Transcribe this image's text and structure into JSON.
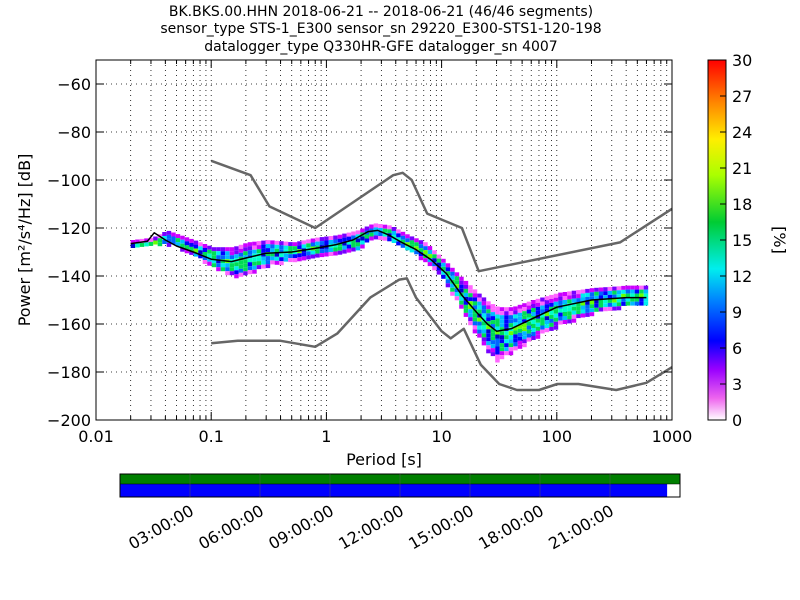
{
  "title_lines": [
    "BK.BKS.00.HHN   2018-06-21 -- 2018-06-21  (46/46 segments)",
    "sensor_type STS-1_E300 sensor_sn 29220_E300-STS1-120-198",
    "datalogger_type Q330HR-GFE datalogger_sn 4007"
  ],
  "chart_data": {
    "type": "heatmap",
    "title": "BK.BKS.00.HHN   2018-06-21 -- 2018-06-21  (46/46 segments)",
    "xlabel": "Period [s]",
    "ylabel": "Power [m^2/s^4/Hz] [dB]",
    "x_scale": "log",
    "xlim": [
      0.01,
      1000
    ],
    "ylim": [
      -200,
      -50
    ],
    "x_ticks": [
      0.01,
      0.1,
      1,
      10,
      100,
      1000
    ],
    "x_tick_labels": [
      "0.01",
      "0.1",
      "1",
      "10",
      "100",
      "1000"
    ],
    "y_ticks": [
      -200,
      -180,
      -160,
      -140,
      -120,
      -100,
      -80,
      -60
    ],
    "y_tick_labels": [
      "−200",
      "−180",
      "−160",
      "−140",
      "−120",
      "−100",
      "−80",
      "−60"
    ],
    "grid": true,
    "colorbar": {
      "label": "[%]",
      "range": [
        0,
        30
      ],
      "ticks": [
        0,
        3,
        6,
        9,
        12,
        15,
        18,
        21,
        24,
        27,
        30
      ],
      "tick_labels": [
        "0",
        "3",
        "6",
        "9",
        "12",
        "15",
        "18",
        "21",
        "24",
        "27",
        "30"
      ]
    },
    "noise_models": [
      {
        "name": "NHNM",
        "color": "#666666",
        "points": [
          [
            0.1,
            -92
          ],
          [
            0.22,
            -98
          ],
          [
            0.32,
            -111
          ],
          [
            0.8,
            -120
          ],
          [
            3.8,
            -98
          ],
          [
            4.6,
            -97
          ],
          [
            5.5,
            -100
          ],
          [
            7.5,
            -114
          ],
          [
            15,
            -120
          ],
          [
            21,
            -138
          ],
          [
            354,
            -126
          ],
          [
            1000,
            -112
          ]
        ]
      },
      {
        "name": "NLNM",
        "color": "#666666",
        "points": [
          [
            0.1,
            -168
          ],
          [
            0.17,
            -167
          ],
          [
            0.4,
            -167
          ],
          [
            0.8,
            -169.5
          ],
          [
            1.24,
            -164
          ],
          [
            2.4,
            -149
          ],
          [
            4.3,
            -141.5
          ],
          [
            5,
            -141
          ],
          [
            6,
            -149
          ],
          [
            10,
            -163
          ],
          [
            12,
            -166
          ],
          [
            15.6,
            -162
          ],
          [
            21.9,
            -177
          ],
          [
            31.6,
            -185
          ],
          [
            45,
            -187.5
          ],
          [
            70,
            -187.5
          ],
          [
            101,
            -185
          ],
          [
            154,
            -185
          ],
          [
            328,
            -187.5
          ],
          [
            600,
            -184.5
          ],
          [
            1000,
            -178
          ]
        ]
      }
    ],
    "mode_curve": {
      "name": "mode",
      "color": "#000000",
      "points": [
        [
          0.02,
          -126.5
        ],
        [
          0.028,
          -125.5
        ],
        [
          0.032,
          -122
        ],
        [
          0.04,
          -125
        ],
        [
          0.05,
          -127.5
        ],
        [
          0.07,
          -130
        ],
        [
          0.1,
          -133
        ],
        [
          0.15,
          -134
        ],
        [
          0.2,
          -132.5
        ],
        [
          0.3,
          -130.5
        ],
        [
          0.5,
          -130
        ],
        [
          0.8,
          -128.5
        ],
        [
          1.2,
          -127
        ],
        [
          1.7,
          -125
        ],
        [
          2.3,
          -121.5
        ],
        [
          2.8,
          -121
        ],
        [
          3.5,
          -123
        ],
        [
          4.5,
          -126
        ],
        [
          6,
          -129
        ],
        [
          8,
          -133
        ],
        [
          11,
          -139
        ],
        [
          15,
          -148
        ],
        [
          20,
          -155
        ],
        [
          25,
          -160
        ],
        [
          30,
          -163
        ],
        [
          40,
          -162
        ],
        [
          60,
          -158
        ],
        [
          100,
          -153
        ],
        [
          200,
          -150
        ],
        [
          400,
          -149
        ],
        [
          600,
          -149
        ]
      ]
    },
    "density_band": {
      "periods": [
        0.02,
        0.03,
        0.04,
        0.06,
        0.1,
        0.15,
        0.2,
        0.3,
        0.5,
        0.8,
        1.2,
        1.8,
        2.5,
        3.5,
        5,
        7,
        10,
        14,
        20,
        25,
        30,
        40,
        60,
        100,
        200,
        400,
        600
      ],
      "low_db": [
        -128,
        -127,
        -126,
        -129,
        -136,
        -140,
        -139,
        -135,
        -133,
        -131,
        -130,
        -129,
        -123,
        -125,
        -129,
        -133,
        -141,
        -152,
        -165,
        -172,
        -175,
        -171,
        -166,
        -160,
        -155,
        -152,
        -152
      ],
      "high_db": [
        -125,
        -124,
        -121,
        -124,
        -128,
        -128,
        -126,
        -125,
        -126,
        -124,
        -123,
        -121,
        -118,
        -119,
        -123,
        -126,
        -133,
        -140,
        -147,
        -151,
        -153,
        -153,
        -150,
        -147,
        -145,
        -144,
        -144
      ]
    },
    "time_axis": {
      "tick_labels": [
        "03:00:00",
        "06:00:00",
        "09:00:00",
        "12:00:00",
        "15:00:00",
        "18:00:00",
        "21:00:00"
      ],
      "data_coverage_fraction": 1.0,
      "processed_coverage_fraction": 0.977,
      "colors": {
        "data": "#007f00",
        "processed": "#0000ff"
      }
    }
  }
}
